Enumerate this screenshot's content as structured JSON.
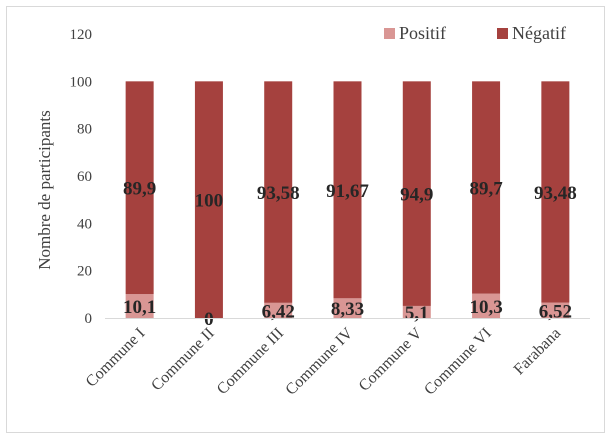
{
  "chart_data": {
    "type": "bar",
    "stacked": true,
    "categories": [
      "Commune I",
      "Commune II",
      "Commune III",
      "Commune IV",
      "Commune V",
      "Commune VI",
      "Farabana"
    ],
    "series": [
      {
        "name": "Positif",
        "color": "#d99694",
        "values": [
          10.1,
          0,
          6.42,
          8.33,
          5.1,
          10.3,
          6.52
        ],
        "labels": [
          "10,1",
          "0",
          "6,42",
          "8,33",
          "5,1",
          "10,3",
          "6,52"
        ]
      },
      {
        "name": "Négatif",
        "color": "#a5413e",
        "values": [
          89.9,
          100,
          93.58,
          91.67,
          94.9,
          89.7,
          93.48
        ],
        "labels": [
          "89,9",
          "100",
          "93,58",
          "91,67",
          "94,9",
          "89,7",
          "93,48"
        ]
      }
    ],
    "ylabel": "Nombre de participants",
    "ylim": [
      0,
      120
    ],
    "yticks": [
      0,
      20,
      40,
      60,
      80,
      100,
      120
    ],
    "grid": false,
    "legend_position": "top-right"
  }
}
